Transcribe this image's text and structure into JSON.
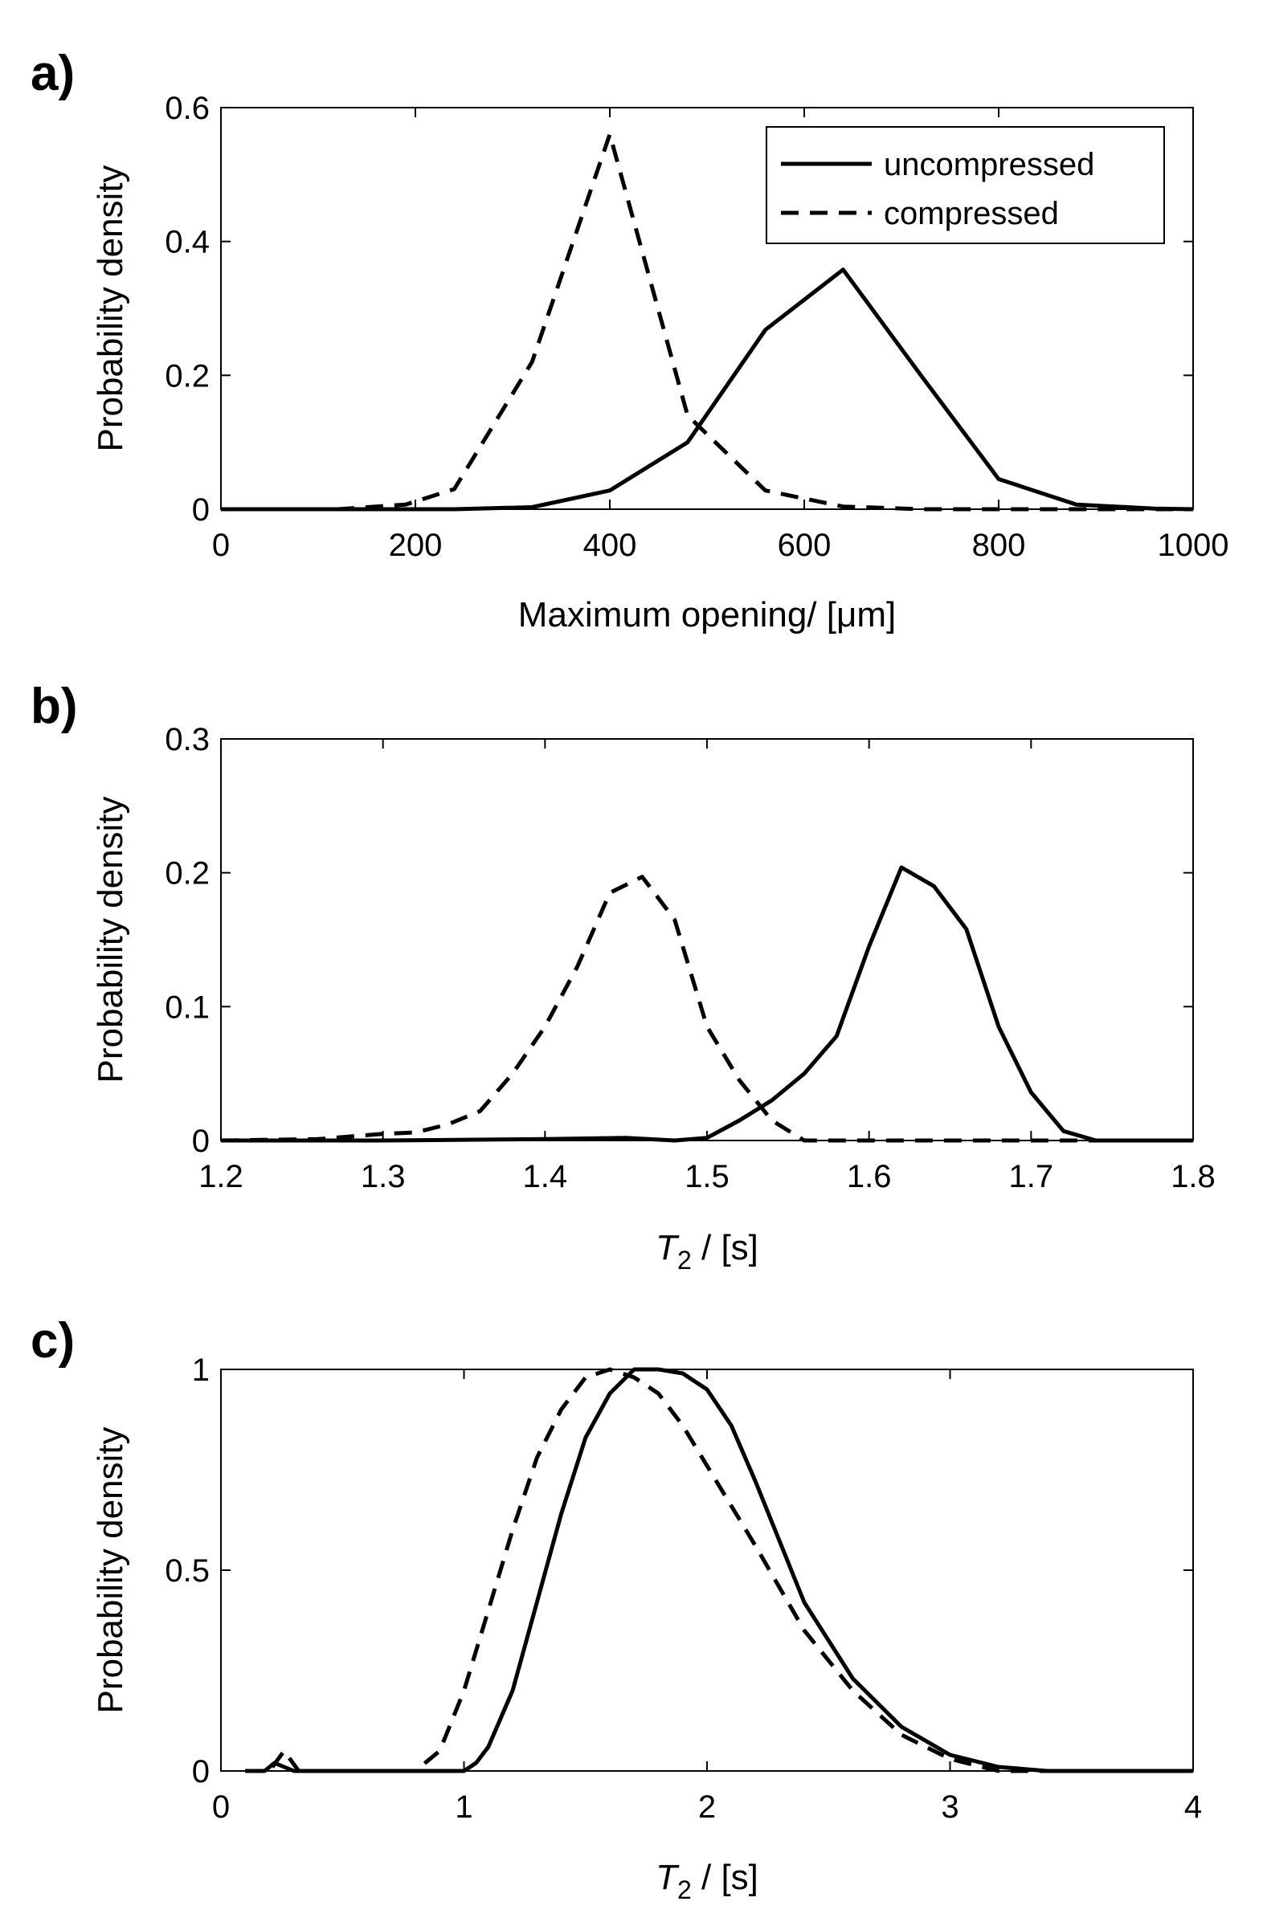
{
  "colors": {
    "line": "#000000",
    "background": "#ffffff"
  },
  "chart_data": [
    {
      "panel": "a)",
      "type": "line",
      "xlabel": "Maximum opening/ [μm]",
      "ylabel": "Probability density",
      "xlim": [
        0,
        1000
      ],
      "ylim": [
        0,
        0.6
      ],
      "xticks": [
        0,
        200,
        400,
        600,
        800,
        1000
      ],
      "yticks": [
        0,
        0.2,
        0.4,
        0.6
      ],
      "xtick_labels": [
        "0",
        "200",
        "400",
        "600",
        "800",
        "1000"
      ],
      "ytick_labels": [
        "0",
        "0.2",
        "0.4",
        "0.6"
      ],
      "legend": {
        "position": "top-right",
        "entries": [
          "uncompressed",
          "compressed"
        ]
      },
      "series": [
        {
          "name": "uncompressed",
          "style": "solid",
          "x": [
            0,
            80,
            160,
            240,
            320,
            400,
            480,
            560,
            640,
            720,
            800,
            880,
            960,
            1000
          ],
          "y": [
            0,
            0,
            0,
            0,
            0.003,
            0.028,
            0.1,
            0.268,
            0.358,
            0.2,
            0.045,
            0.007,
            0.001,
            0
          ]
        },
        {
          "name": "compressed",
          "style": "dashed",
          "x": [
            0,
            120,
            190,
            240,
            320,
            400,
            480,
            560,
            640,
            720,
            800,
            880,
            960,
            1000
          ],
          "y": [
            0,
            0,
            0.007,
            0.03,
            0.22,
            0.56,
            0.14,
            0.028,
            0.004,
            0,
            0,
            0,
            0,
            0
          ]
        }
      ]
    },
    {
      "panel": "b)",
      "type": "line",
      "xlabel_main": "T",
      "xlabel_sub": "2",
      "xlabel_unit": " / [s]",
      "ylabel": "Probability density",
      "xlim": [
        1.2,
        1.8
      ],
      "ylim": [
        0,
        0.3
      ],
      "xticks": [
        1.2,
        1.3,
        1.4,
        1.5,
        1.6,
        1.7,
        1.8
      ],
      "yticks": [
        0,
        0.1,
        0.2,
        0.3
      ],
      "xtick_labels": [
        "1.2",
        "1.3",
        "1.4",
        "1.5",
        "1.6",
        "1.7",
        "1.8"
      ],
      "ytick_labels": [
        "0",
        "0.1",
        "0.2",
        "0.3"
      ],
      "series": [
        {
          "name": "uncompressed",
          "style": "solid",
          "x": [
            1.2,
            1.3,
            1.4,
            1.45,
            1.48,
            1.5,
            1.52,
            1.54,
            1.56,
            1.58,
            1.6,
            1.62,
            1.64,
            1.66,
            1.68,
            1.7,
            1.72,
            1.74,
            1.8
          ],
          "y": [
            0,
            0,
            0.001,
            0.002,
            0,
            0.002,
            0.015,
            0.03,
            0.05,
            0.078,
            0.145,
            0.204,
            0.19,
            0.158,
            0.085,
            0.036,
            0.007,
            0,
            0
          ]
        },
        {
          "name": "compressed",
          "style": "dashed",
          "x": [
            1.2,
            1.26,
            1.3,
            1.32,
            1.34,
            1.36,
            1.38,
            1.4,
            1.42,
            1.44,
            1.46,
            1.48,
            1.5,
            1.52,
            1.54,
            1.56,
            1.6,
            1.8
          ],
          "y": [
            0,
            0.001,
            0.005,
            0.006,
            0.012,
            0.022,
            0.05,
            0.085,
            0.13,
            0.185,
            0.197,
            0.165,
            0.085,
            0.045,
            0.015,
            0,
            0,
            0
          ]
        }
      ]
    },
    {
      "panel": "c)",
      "type": "line",
      "xlabel_main": "T",
      "xlabel_sub": "2",
      "xlabel_unit": " / [s]",
      "ylabel": "Probability density",
      "xlim": [
        0,
        4
      ],
      "ylim": [
        0,
        1
      ],
      "xticks": [
        0,
        1,
        2,
        3,
        4
      ],
      "yticks": [
        0,
        0.5,
        1
      ],
      "xtick_labels": [
        "0",
        "1",
        "2",
        "3",
        "4"
      ],
      "ytick_labels": [
        "0",
        "0.5",
        "1"
      ],
      "series": [
        {
          "name": "uncompressed",
          "style": "solid",
          "x": [
            0.1,
            0.18,
            0.22,
            0.3,
            1.0,
            1.05,
            1.1,
            1.2,
            1.3,
            1.4,
            1.5,
            1.6,
            1.7,
            1.8,
            1.9,
            2.0,
            2.1,
            2.2,
            2.4,
            2.6,
            2.8,
            3.0,
            3.2,
            3.4,
            4.0
          ],
          "y": [
            0,
            0,
            0.02,
            0,
            0,
            0.02,
            0.06,
            0.2,
            0.42,
            0.64,
            0.83,
            0.94,
            1.0,
            1.0,
            0.99,
            0.95,
            0.86,
            0.72,
            0.42,
            0.23,
            0.11,
            0.04,
            0.01,
            0,
            0
          ]
        },
        {
          "name": "compressed",
          "style": "dashed",
          "x": [
            0.1,
            0.2,
            0.26,
            0.32,
            0.8,
            0.9,
            1.0,
            1.1,
            1.2,
            1.3,
            1.4,
            1.5,
            1.6,
            1.7,
            1.8,
            1.9,
            2.0,
            2.2,
            2.4,
            2.6,
            2.8,
            3.0,
            3.2,
            4.0
          ],
          "y": [
            0,
            0,
            0.05,
            0,
            0,
            0.05,
            0.2,
            0.4,
            0.6,
            0.78,
            0.9,
            0.98,
            1.0,
            0.98,
            0.94,
            0.86,
            0.76,
            0.56,
            0.35,
            0.2,
            0.09,
            0.03,
            0,
            0
          ]
        }
      ]
    }
  ]
}
